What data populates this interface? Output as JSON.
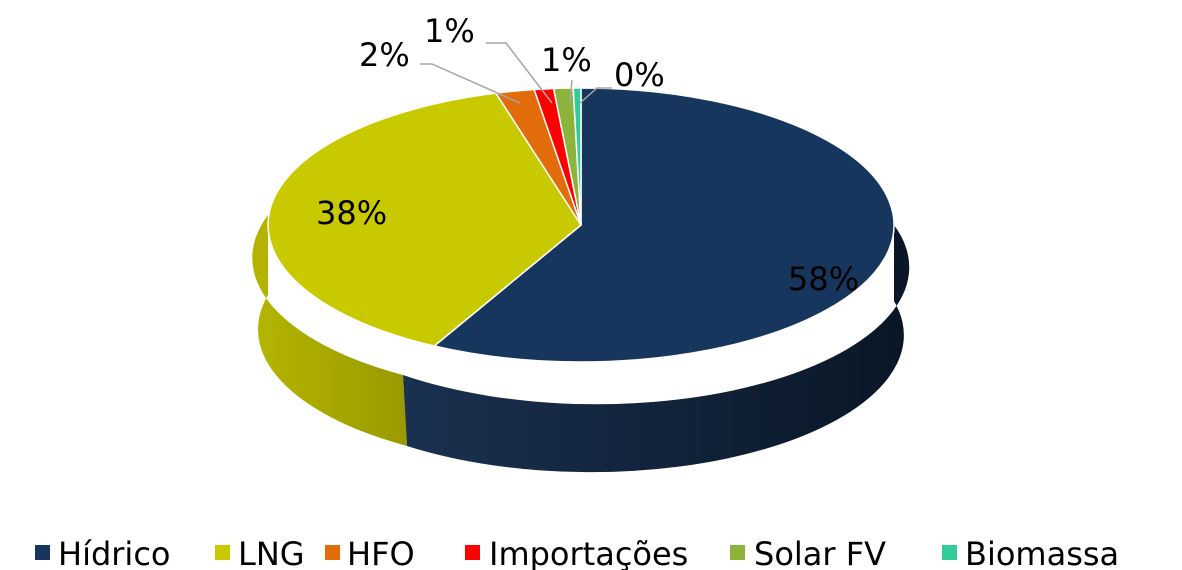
{
  "chart_data": {
    "type": "pie",
    "style": "3d",
    "title": "",
    "legend_position": "bottom",
    "slices": [
      {
        "name": "Hídrico",
        "value": 58,
        "label": "58%",
        "color": "#17365d"
      },
      {
        "name": "LNG",
        "value": 38,
        "label": "38%",
        "color": "#c9c900"
      },
      {
        "name": "HFO",
        "value": 2,
        "label": "2%",
        "color": "#e26b0a"
      },
      {
        "name": "Importações",
        "value": 1,
        "label": "1%",
        "color": "#ff0000"
      },
      {
        "name": "Solar FV",
        "value": 1,
        "label": "1%",
        "color": "#8cb33a"
      },
      {
        "name": "Biomassa",
        "value": 0,
        "label": "0%",
        "color": "#33cc99"
      }
    ]
  }
}
